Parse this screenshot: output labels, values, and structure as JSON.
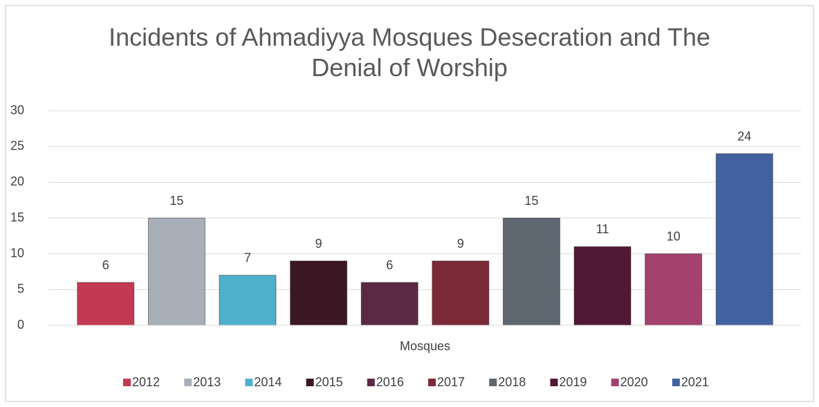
{
  "chart_data": {
    "type": "bar",
    "title": "Incidents of Ahmadiyya Mosques Desecration and The Denial of Worship",
    "categories": [
      "Mosques"
    ],
    "series": [
      {
        "name": "2012",
        "color": "#c23a52",
        "values": [
          6
        ]
      },
      {
        "name": "2013",
        "color": "#a8afb9",
        "values": [
          15
        ]
      },
      {
        "name": "2014",
        "color": "#4fb0cc",
        "values": [
          7
        ]
      },
      {
        "name": "2015",
        "color": "#3b1824",
        "values": [
          9
        ]
      },
      {
        "name": "2016",
        "color": "#5b2946",
        "values": [
          6
        ]
      },
      {
        "name": "2017",
        "color": "#7c2a38",
        "values": [
          9
        ]
      },
      {
        "name": "2018",
        "color": "#5f6771",
        "values": [
          15
        ]
      },
      {
        "name": "2019",
        "color": "#501a37",
        "values": [
          11
        ]
      },
      {
        "name": "2020",
        "color": "#a3416f",
        "values": [
          10
        ]
      },
      {
        "name": "2021",
        "color": "#4261a0",
        "values": [
          24
        ]
      }
    ],
    "ylim": [
      0,
      30
    ],
    "yticks": [
      0,
      5,
      10,
      15,
      20,
      25,
      30
    ],
    "grid": true,
    "legend": "bottom"
  }
}
